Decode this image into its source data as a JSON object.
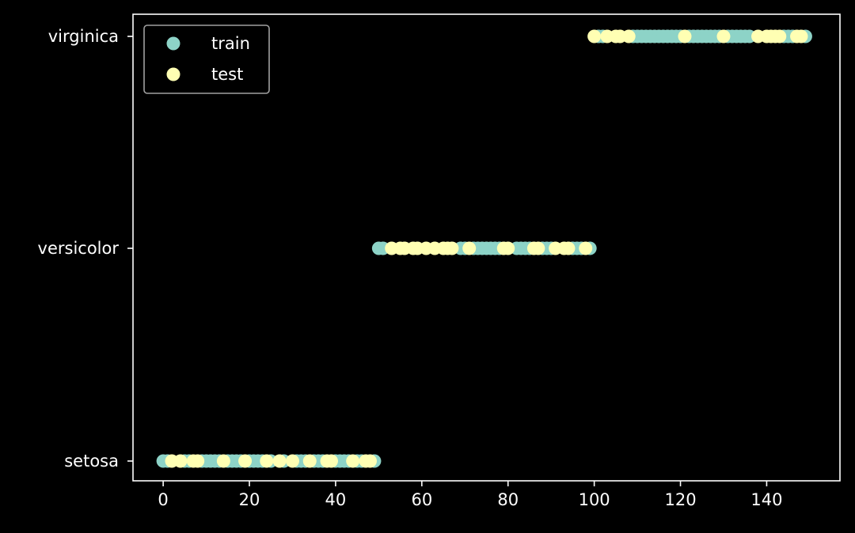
{
  "chart_data": {
    "type": "scatter",
    "title": "",
    "xlabel": "",
    "ylabel": "",
    "xlim": [
      -7,
      157
    ],
    "x_ticks": [
      0,
      20,
      40,
      60,
      80,
      100,
      120,
      140
    ],
    "y_categories": [
      "setosa",
      "versicolor",
      "virginica"
    ],
    "grid": false,
    "legend_position": "top-left",
    "background": "#000000",
    "series": [
      {
        "name": "train",
        "color": "#8dd3c7",
        "points": [
          {
            "x": 0,
            "y": "setosa"
          },
          {
            "x": 1,
            "y": "setosa"
          },
          {
            "x": 5,
            "y": "setosa"
          },
          {
            "x": 6,
            "y": "setosa"
          },
          {
            "x": 9,
            "y": "setosa"
          },
          {
            "x": 10,
            "y": "setosa"
          },
          {
            "x": 11,
            "y": "setosa"
          },
          {
            "x": 12,
            "y": "setosa"
          },
          {
            "x": 13,
            "y": "setosa"
          },
          {
            "x": 15,
            "y": "setosa"
          },
          {
            "x": 16,
            "y": "setosa"
          },
          {
            "x": 17,
            "y": "setosa"
          },
          {
            "x": 18,
            "y": "setosa"
          },
          {
            "x": 20,
            "y": "setosa"
          },
          {
            "x": 21,
            "y": "setosa"
          },
          {
            "x": 22,
            "y": "setosa"
          },
          {
            "x": 23,
            "y": "setosa"
          },
          {
            "x": 25,
            "y": "setosa"
          },
          {
            "x": 28,
            "y": "setosa"
          },
          {
            "x": 31,
            "y": "setosa"
          },
          {
            "x": 32,
            "y": "setosa"
          },
          {
            "x": 33,
            "y": "setosa"
          },
          {
            "x": 35,
            "y": "setosa"
          },
          {
            "x": 36,
            "y": "setosa"
          },
          {
            "x": 37,
            "y": "setosa"
          },
          {
            "x": 40,
            "y": "setosa"
          },
          {
            "x": 41,
            "y": "setosa"
          },
          {
            "x": 42,
            "y": "setosa"
          },
          {
            "x": 43,
            "y": "setosa"
          },
          {
            "x": 45,
            "y": "setosa"
          },
          {
            "x": 46,
            "y": "setosa"
          },
          {
            "x": 49,
            "y": "setosa"
          },
          {
            "x": 50,
            "y": "versicolor"
          },
          {
            "x": 51,
            "y": "versicolor"
          },
          {
            "x": 69,
            "y": "versicolor"
          },
          {
            "x": 70,
            "y": "versicolor"
          },
          {
            "x": 72,
            "y": "versicolor"
          },
          {
            "x": 73,
            "y": "versicolor"
          },
          {
            "x": 74,
            "y": "versicolor"
          },
          {
            "x": 75,
            "y": "versicolor"
          },
          {
            "x": 76,
            "y": "versicolor"
          },
          {
            "x": 77,
            "y": "versicolor"
          },
          {
            "x": 78,
            "y": "versicolor"
          },
          {
            "x": 82,
            "y": "versicolor"
          },
          {
            "x": 83,
            "y": "versicolor"
          },
          {
            "x": 84,
            "y": "versicolor"
          },
          {
            "x": 85,
            "y": "versicolor"
          },
          {
            "x": 88,
            "y": "versicolor"
          },
          {
            "x": 89,
            "y": "versicolor"
          },
          {
            "x": 90,
            "y": "versicolor"
          },
          {
            "x": 95,
            "y": "versicolor"
          },
          {
            "x": 96,
            "y": "versicolor"
          },
          {
            "x": 97,
            "y": "versicolor"
          },
          {
            "x": 99,
            "y": "versicolor"
          },
          {
            "x": 101,
            "y": "virginica"
          },
          {
            "x": 102,
            "y": "virginica"
          },
          {
            "x": 109,
            "y": "virginica"
          },
          {
            "x": 110,
            "y": "virginica"
          },
          {
            "x": 111,
            "y": "virginica"
          },
          {
            "x": 112,
            "y": "virginica"
          },
          {
            "x": 113,
            "y": "virginica"
          },
          {
            "x": 114,
            "y": "virginica"
          },
          {
            "x": 115,
            "y": "virginica"
          },
          {
            "x": 116,
            "y": "virginica"
          },
          {
            "x": 117,
            "y": "virginica"
          },
          {
            "x": 118,
            "y": "virginica"
          },
          {
            "x": 119,
            "y": "virginica"
          },
          {
            "x": 120,
            "y": "virginica"
          },
          {
            "x": 122,
            "y": "virginica"
          },
          {
            "x": 123,
            "y": "virginica"
          },
          {
            "x": 124,
            "y": "virginica"
          },
          {
            "x": 125,
            "y": "virginica"
          },
          {
            "x": 126,
            "y": "virginica"
          },
          {
            "x": 127,
            "y": "virginica"
          },
          {
            "x": 128,
            "y": "virginica"
          },
          {
            "x": 129,
            "y": "virginica"
          },
          {
            "x": 131,
            "y": "virginica"
          },
          {
            "x": 132,
            "y": "virginica"
          },
          {
            "x": 133,
            "y": "virginica"
          },
          {
            "x": 134,
            "y": "virginica"
          },
          {
            "x": 135,
            "y": "virginica"
          },
          {
            "x": 136,
            "y": "virginica"
          },
          {
            "x": 144,
            "y": "virginica"
          },
          {
            "x": 145,
            "y": "virginica"
          },
          {
            "x": 146,
            "y": "virginica"
          },
          {
            "x": 149,
            "y": "virginica"
          }
        ]
      },
      {
        "name": "test",
        "color": "#ffffb3",
        "points": [
          {
            "x": 2,
            "y": "setosa"
          },
          {
            "x": 4,
            "y": "setosa"
          },
          {
            "x": 7,
            "y": "setosa"
          },
          {
            "x": 8,
            "y": "setosa"
          },
          {
            "x": 14,
            "y": "setosa"
          },
          {
            "x": 19,
            "y": "setosa"
          },
          {
            "x": 24,
            "y": "setosa"
          },
          {
            "x": 27,
            "y": "setosa"
          },
          {
            "x": 30,
            "y": "setosa"
          },
          {
            "x": 34,
            "y": "setosa"
          },
          {
            "x": 38,
            "y": "setosa"
          },
          {
            "x": 39,
            "y": "setosa"
          },
          {
            "x": 44,
            "y": "setosa"
          },
          {
            "x": 47,
            "y": "setosa"
          },
          {
            "x": 48,
            "y": "setosa"
          },
          {
            "x": 53,
            "y": "versicolor"
          },
          {
            "x": 55,
            "y": "versicolor"
          },
          {
            "x": 56,
            "y": "versicolor"
          },
          {
            "x": 58,
            "y": "versicolor"
          },
          {
            "x": 59,
            "y": "versicolor"
          },
          {
            "x": 61,
            "y": "versicolor"
          },
          {
            "x": 63,
            "y": "versicolor"
          },
          {
            "x": 65,
            "y": "versicolor"
          },
          {
            "x": 66,
            "y": "versicolor"
          },
          {
            "x": 67,
            "y": "versicolor"
          },
          {
            "x": 71,
            "y": "versicolor"
          },
          {
            "x": 79,
            "y": "versicolor"
          },
          {
            "x": 80,
            "y": "versicolor"
          },
          {
            "x": 86,
            "y": "versicolor"
          },
          {
            "x": 87,
            "y": "versicolor"
          },
          {
            "x": 91,
            "y": "versicolor"
          },
          {
            "x": 93,
            "y": "versicolor"
          },
          {
            "x": 94,
            "y": "versicolor"
          },
          {
            "x": 98,
            "y": "versicolor"
          },
          {
            "x": 100,
            "y": "virginica"
          },
          {
            "x": 103,
            "y": "virginica"
          },
          {
            "x": 105,
            "y": "virginica"
          },
          {
            "x": 106,
            "y": "virginica"
          },
          {
            "x": 108,
            "y": "virginica"
          },
          {
            "x": 121,
            "y": "virginica"
          },
          {
            "x": 130,
            "y": "virginica"
          },
          {
            "x": 138,
            "y": "virginica"
          },
          {
            "x": 140,
            "y": "virginica"
          },
          {
            "x": 141,
            "y": "virginica"
          },
          {
            "x": 142,
            "y": "virginica"
          },
          {
            "x": 143,
            "y": "virginica"
          },
          {
            "x": 147,
            "y": "virginica"
          },
          {
            "x": 148,
            "y": "virginica"
          }
        ]
      }
    ]
  }
}
